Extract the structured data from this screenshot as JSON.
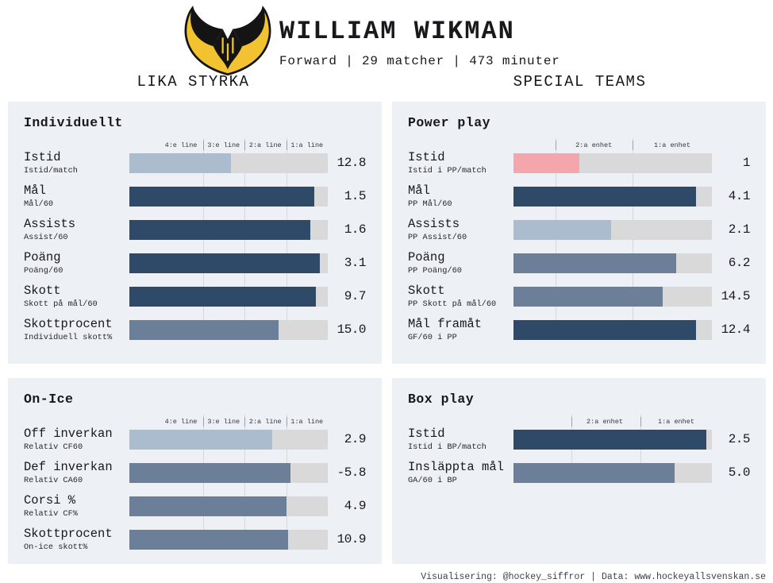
{
  "header": {
    "name": "WILLIAM WIKMAN",
    "subtitle": "Forward | 29 matcher | 473 minuter",
    "logo_alt": "vik-winged-emblem"
  },
  "sections": {
    "left": "LIKA STYRKA",
    "right": "SPECIAL TEAMS"
  },
  "footer": {
    "credit": "Visualisering: @hockey_siffror | Data: www.hockeyallsvenskan.se"
  },
  "colors": {
    "navy": "#2e4a68",
    "slate": "#6b8098",
    "light": "#aabccd",
    "pink": "#f4a6ac",
    "track": "#d9d9d9",
    "panel_bg": "#edf0f4",
    "logo_gold": "#f2c230",
    "logo_black": "#141414"
  },
  "chart_data": [
    {
      "type": "bar",
      "id": "individuellt",
      "title": "Individuellt",
      "section": "LIKA STYRKA",
      "scale_markers": {
        "boundaries_pct": [
          37,
          58,
          79
        ],
        "labels": [
          {
            "text": "4:e line",
            "center_pct": 26
          },
          {
            "text": "3:e line",
            "center_pct": 47.5
          },
          {
            "text": "2:a line",
            "center_pct": 68.5
          },
          {
            "text": "1:a line",
            "center_pct": 89.5
          }
        ]
      },
      "categories": [
        "Istid",
        "Mål",
        "Assists",
        "Poäng",
        "Skott",
        "Skottprocent"
      ],
      "sublabels": [
        "Istid/match",
        "Mål/60",
        "Assist/60",
        "Poäng/60",
        "Skott på mål/60",
        "Individuell skott%"
      ],
      "values": [
        12.8,
        1.5,
        1.6,
        3.1,
        9.7,
        15.0
      ],
      "value_labels": [
        "12.8",
        "1.5",
        "1.6",
        "3.1",
        "9.7",
        "15.0"
      ],
      "bar_fill_pct": [
        51,
        93,
        91,
        96,
        94,
        75
      ],
      "bar_colors": [
        "light",
        "navy",
        "navy",
        "navy",
        "navy",
        "slate"
      ]
    },
    {
      "type": "bar",
      "id": "power-play",
      "title": "Power play",
      "section": "SPECIAL TEAMS",
      "scale_markers": {
        "boundaries_pct": [
          21,
          60
        ],
        "labels": [
          {
            "text": "2:a enhet",
            "center_pct": 40.5
          },
          {
            "text": "1:a enhet",
            "center_pct": 80
          }
        ]
      },
      "categories": [
        "Istid",
        "Mål",
        "Assists",
        "Poäng",
        "Skott",
        "Mål framåt"
      ],
      "sublabels": [
        "Istid i PP/match",
        "PP Mål/60",
        "PP Assist/60",
        "PP Poäng/60",
        "PP Skott på mål/60",
        "GF/60 i PP"
      ],
      "values": [
        1,
        4.1,
        2.1,
        6.2,
        14.5,
        12.4
      ],
      "value_labels": [
        "1",
        "4.1",
        "2.1",
        "6.2",
        "14.5",
        "12.4"
      ],
      "bar_fill_pct": [
        33,
        92,
        49,
        82,
        75,
        92
      ],
      "bar_colors": [
        "pink",
        "navy",
        "light",
        "slate",
        "slate",
        "navy"
      ]
    },
    {
      "type": "bar",
      "id": "on-ice",
      "title": "On-Ice",
      "section": "LIKA STYRKA",
      "scale_markers": {
        "boundaries_pct": [
          37,
          58,
          79
        ],
        "labels": [
          {
            "text": "4:e line",
            "center_pct": 26
          },
          {
            "text": "3:e line",
            "center_pct": 47.5
          },
          {
            "text": "2:a line",
            "center_pct": 68.5
          },
          {
            "text": "1:a line",
            "center_pct": 89.5
          }
        ]
      },
      "categories": [
        "Off inverkan",
        "Def inverkan",
        "Corsi %",
        "Skottprocent"
      ],
      "sublabels": [
        "Relativ CF60",
        "Relativ CA60",
        "Relativ CF%",
        "On-ice skott%"
      ],
      "values": [
        2.9,
        -5.8,
        4.9,
        10.9
      ],
      "value_labels": [
        "2.9",
        "-5.8",
        "4.9",
        "10.9"
      ],
      "bar_fill_pct": [
        72,
        81,
        79,
        80
      ],
      "bar_colors": [
        "light",
        "slate",
        "slate",
        "slate"
      ]
    },
    {
      "type": "bar",
      "id": "box-play",
      "title": "Box play",
      "section": "SPECIAL TEAMS",
      "scale_markers": {
        "boundaries_pct": [
          29,
          64
        ],
        "labels": [
          {
            "text": "2:a enhet",
            "center_pct": 46
          },
          {
            "text": "1:a enhet",
            "center_pct": 82
          }
        ]
      },
      "categories": [
        "Istid",
        "Insläppta mål"
      ],
      "sublabels": [
        "Istid i BP/match",
        "GA/60 i BP"
      ],
      "values": [
        2.5,
        5.0
      ],
      "value_labels": [
        "2.5",
        "5.0"
      ],
      "bar_fill_pct": [
        97,
        81
      ],
      "bar_colors": [
        "navy",
        "slate"
      ]
    }
  ]
}
